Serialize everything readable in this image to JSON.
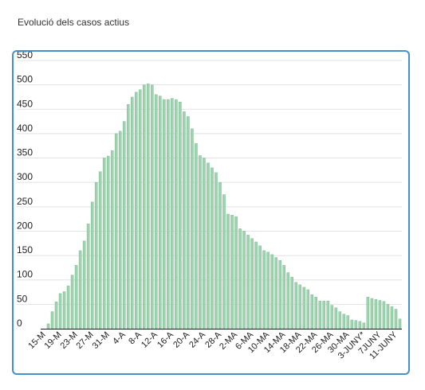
{
  "page": {
    "title": "Evolució dels casos actius"
  },
  "chart_data": {
    "type": "bar",
    "ylim": [
      0,
      550
    ],
    "yticks": [
      0,
      50,
      100,
      150,
      200,
      250,
      300,
      350,
      400,
      450,
      500,
      550
    ],
    "bar_color": "#9fd3b0",
    "bar_edge_color": "#6cb684",
    "grid_color": "#e2e2e2",
    "tick_labels": [
      "15-M",
      "19-M",
      "23-M",
      "27-M",
      "31-M",
      "4-A",
      "8-A",
      "12-A",
      "16-A",
      "20-A",
      "24-A",
      "28-A",
      "2-MA",
      "6-MA",
      "10-MA",
      "14-MA",
      "18-MA",
      "22-MA",
      "26-MA",
      "30-MA",
      "3-JUNY*",
      "7JUNY",
      "11-JUNY"
    ],
    "values": [
      0,
      10,
      35,
      55,
      72,
      76,
      88,
      110,
      130,
      160,
      180,
      215,
      260,
      300,
      322,
      350,
      354,
      365,
      400,
      405,
      425,
      460,
      475,
      485,
      490,
      500,
      502,
      500,
      480,
      477,
      470,
      470,
      472,
      470,
      465,
      445,
      435,
      410,
      380,
      355,
      350,
      340,
      330,
      320,
      300,
      275,
      235,
      233,
      230,
      205,
      200,
      192,
      185,
      178,
      170,
      160,
      157,
      152,
      146,
      140,
      130,
      115,
      106,
      95,
      90,
      85,
      80,
      70,
      65,
      57,
      57,
      57,
      48,
      43,
      35,
      30,
      27,
      18,
      17,
      15,
      12,
      65,
      62,
      60,
      58,
      56,
      50,
      45,
      40,
      20
    ]
  }
}
